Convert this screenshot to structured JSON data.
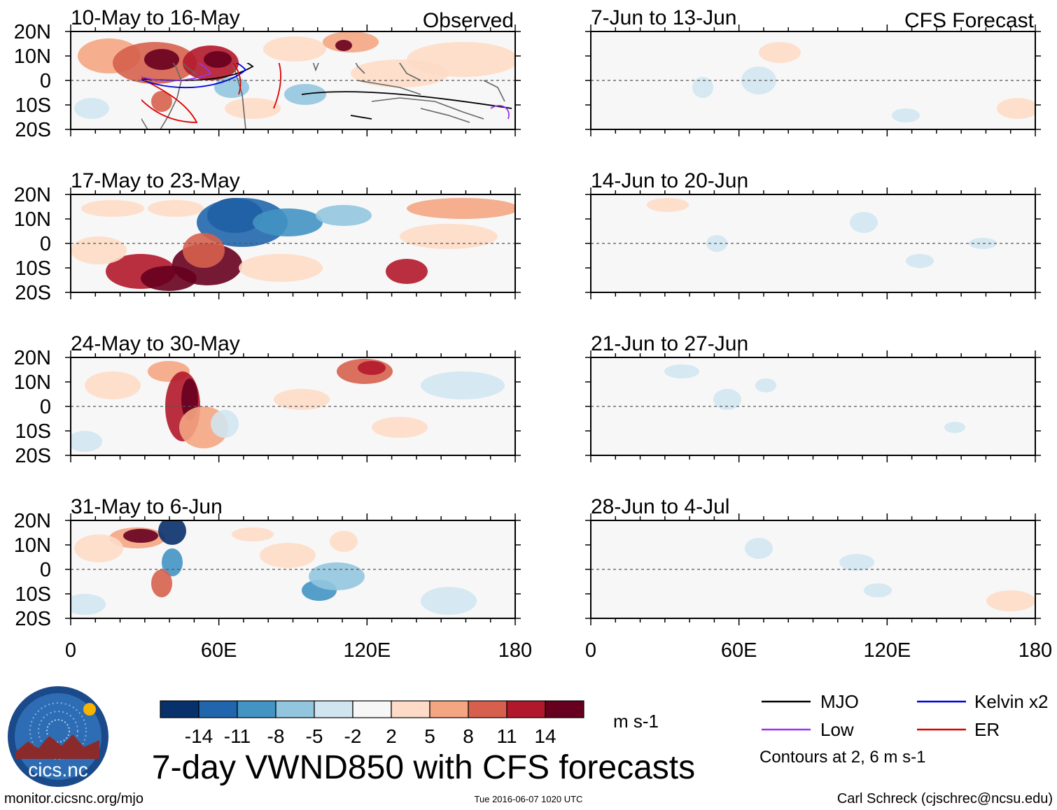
{
  "panels": {
    "observed_header": "Observed",
    "forecast_header": "CFS Forecast",
    "observed_weeks": [
      "10-May to 16-May",
      "17-May to 23-May",
      "24-May to 30-May",
      "31-May to 6-Jun"
    ],
    "forecast_weeks": [
      "7-Jun to 13-Jun",
      "14-Jun to 20-Jun",
      "21-Jun to 27-Jun",
      "28-Jun to 4-Jul"
    ]
  },
  "axes": {
    "lat_labels": [
      "20N",
      "10N",
      "0",
      "10S",
      "20S"
    ],
    "lon_labels": [
      "0",
      "60E",
      "120E",
      "180"
    ]
  },
  "colorbar": {
    "tick_labels": [
      "-14",
      "-11",
      "-8",
      "-5",
      "-2",
      "2",
      "5",
      "8",
      "11",
      "14"
    ],
    "colors": [
      "#08306b",
      "#2166ac",
      "#4393c3",
      "#92c5de",
      "#d1e5f0",
      "#f7f7f7",
      "#fddbc7",
      "#f4a582",
      "#d6604d",
      "#b2182b",
      "#67001f"
    ],
    "units": "m s-1"
  },
  "legend": {
    "items": [
      {
        "label": "MJO",
        "color": "#000000"
      },
      {
        "label": "Kelvin x2",
        "color": "#0000dd"
      },
      {
        "label": "Low",
        "color": "#9933ee"
      },
      {
        "label": "ER",
        "color": "#dd0000"
      }
    ],
    "note": "Contours at 2, 6 m s-1"
  },
  "logo_text": "cics.nc",
  "title": "7-day VWND850 with CFS forecasts",
  "footer": {
    "url": "monitor.cicsnc.org/mjo",
    "timestamp": "Tue 2016-06-07 1020 UTC",
    "credit": "Carl Schreck (cjschrec@ncsu.edu)"
  }
}
